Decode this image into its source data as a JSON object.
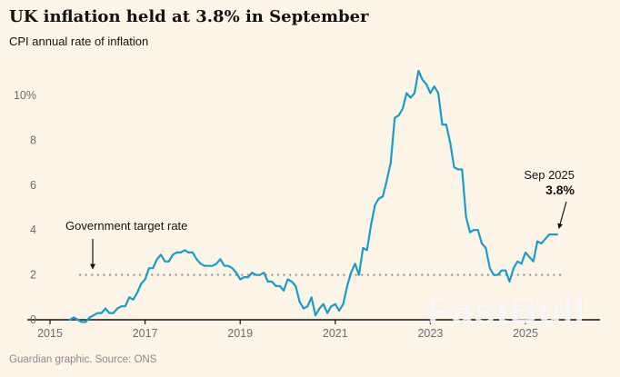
{
  "title": "UK inflation held at 3.8% in September",
  "subtitle": "CPI annual rate of inflation",
  "footer": "Guardian graphic. Source: ONS",
  "watermark": "FastBull",
  "annotations": {
    "target_label": "Government target rate",
    "end_label_line1": "Sep 2025",
    "end_label_line2": "3.8%"
  },
  "colors": {
    "background": "#fdf4e8",
    "line": "#1a9cc9",
    "axis": "#121212",
    "target_dots": "#9a9a9a",
    "tick_text": "#6b6b6b"
  },
  "chart_data": {
    "type": "line",
    "title": "UK inflation held at 3.8% in September",
    "subtitle": "CPI annual rate of inflation",
    "xlabel": "",
    "ylabel": "CPI annual rate of inflation (%)",
    "x_start": 2015.4167,
    "x_step": 0.08333,
    "x_ticks": [
      2015,
      2017,
      2019,
      2021,
      2023,
      2025
    ],
    "y_ticks": [
      0,
      2,
      4,
      6,
      8,
      10
    ],
    "y_top_label": "10%",
    "ylim": [
      -0.5,
      11.6
    ],
    "xlim": [
      2014.5,
      2026.5
    ],
    "grid": false,
    "legend": false,
    "target_value": 2,
    "last_point": {
      "label": "Sep 2025",
      "value": 3.8
    },
    "values": [
      0.0,
      0.1,
      0.0,
      -0.1,
      -0.1,
      0.1,
      0.2,
      0.3,
      0.3,
      0.5,
      0.3,
      0.3,
      0.5,
      0.6,
      0.6,
      1.0,
      0.9,
      1.2,
      1.6,
      1.8,
      2.3,
      2.3,
      2.7,
      2.9,
      2.6,
      2.6,
      2.9,
      3.0,
      3.0,
      3.1,
      3.0,
      3.0,
      2.7,
      2.5,
      2.4,
      2.4,
      2.4,
      2.5,
      2.7,
      2.4,
      2.4,
      2.3,
      2.1,
      1.8,
      1.9,
      1.9,
      2.1,
      2.0,
      2.0,
      2.1,
      1.7,
      1.7,
      1.5,
      1.5,
      1.3,
      1.8,
      1.7,
      1.5,
      0.8,
      0.5,
      0.6,
      1.0,
      0.2,
      0.5,
      0.7,
      0.3,
      0.6,
      0.7,
      0.4,
      0.7,
      1.5,
      2.1,
      2.5,
      2.0,
      3.2,
      3.1,
      4.2,
      5.1,
      5.4,
      5.5,
      6.2,
      7.0,
      9.0,
      9.1,
      9.4,
      10.1,
      9.9,
      10.1,
      11.1,
      10.7,
      10.5,
      10.1,
      10.4,
      10.1,
      8.7,
      8.7,
      7.9,
      6.8,
      6.7,
      6.7,
      4.6,
      3.9,
      4.0,
      4.0,
      3.4,
      3.2,
      2.3,
      2.0,
      2.0,
      2.2,
      2.2,
      1.7,
      2.3,
      2.6,
      2.5,
      3.0,
      2.8,
      2.6,
      3.5,
      3.4,
      3.6,
      3.8,
      3.8,
      3.8
    ]
  }
}
